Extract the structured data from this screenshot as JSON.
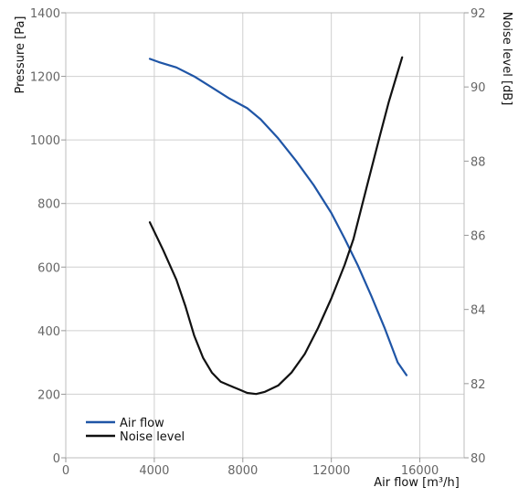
{
  "chart_data": {
    "type": "line",
    "x_axis": {
      "label": "Air flow [m³/h]",
      "range": [
        0,
        18000
      ],
      "ticks": [
        0,
        4000,
        8000,
        12000,
        16000
      ]
    },
    "y_axis_left": {
      "label": "Pressure [Pa]",
      "range": [
        0,
        1400
      ],
      "ticks": [
        0,
        200,
        400,
        600,
        800,
        1000,
        1200,
        1400
      ]
    },
    "y_axis_right": {
      "label": "Noise level [dB]",
      "range": [
        80,
        92
      ],
      "ticks": [
        80,
        82,
        84,
        86,
        88,
        90,
        92
      ]
    },
    "grid": true,
    "legend_position": "bottom-left",
    "series": [
      {
        "name": "Air flow",
        "axis": "left",
        "color": "#1f55a6",
        "points": [
          [
            3800,
            1255
          ],
          [
            4200,
            1245
          ],
          [
            5000,
            1228
          ],
          [
            5800,
            1200
          ],
          [
            6600,
            1165
          ],
          [
            7400,
            1130
          ],
          [
            7800,
            1115
          ],
          [
            8200,
            1100
          ],
          [
            8800,
            1065
          ],
          [
            9600,
            1005
          ],
          [
            10400,
            935
          ],
          [
            11200,
            858
          ],
          [
            12000,
            770
          ],
          [
            12600,
            690
          ],
          [
            13200,
            605
          ],
          [
            13800,
            510
          ],
          [
            14400,
            410
          ],
          [
            15000,
            300
          ],
          [
            15400,
            260
          ]
        ]
      },
      {
        "name": "Noise level",
        "axis": "right",
        "color": "#111111",
        "points": [
          [
            3800,
            86.35
          ],
          [
            4400,
            85.6
          ],
          [
            5000,
            84.8
          ],
          [
            5400,
            84.1
          ],
          [
            5800,
            83.3
          ],
          [
            6200,
            82.7
          ],
          [
            6600,
            82.3
          ],
          [
            7000,
            82.05
          ],
          [
            7400,
            81.95
          ],
          [
            7800,
            81.85
          ],
          [
            8200,
            81.75
          ],
          [
            8600,
            81.72
          ],
          [
            9000,
            81.78
          ],
          [
            9600,
            81.95
          ],
          [
            10200,
            82.3
          ],
          [
            10800,
            82.8
          ],
          [
            11400,
            83.5
          ],
          [
            12000,
            84.3
          ],
          [
            12600,
            85.2
          ],
          [
            13000,
            85.9
          ],
          [
            13600,
            87.3
          ],
          [
            14200,
            88.7
          ],
          [
            14600,
            89.6
          ],
          [
            14900,
            90.2
          ],
          [
            15200,
            90.8
          ]
        ]
      }
    ]
  }
}
